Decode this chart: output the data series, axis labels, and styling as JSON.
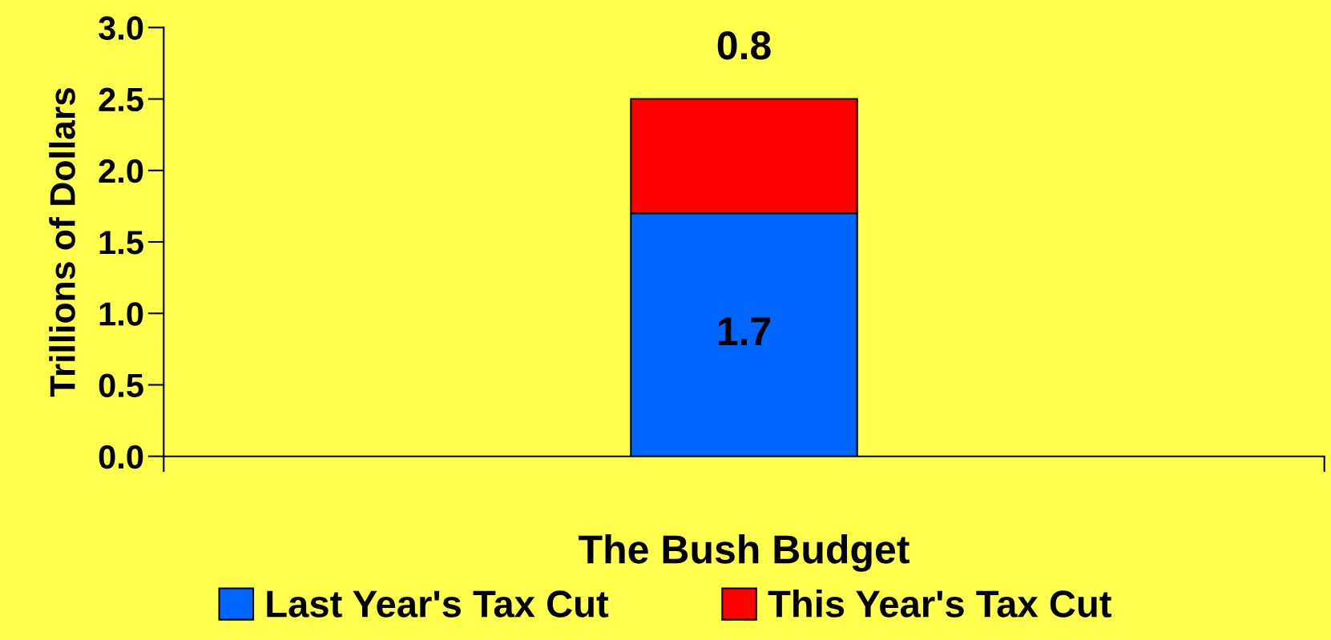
{
  "chart_data": {
    "type": "bar",
    "stacked": true,
    "ylabel": "Trillions of Dollars",
    "categories": [
      "The Bush Budget"
    ],
    "series": [
      {
        "name": "Last Year's Tax Cut",
        "color": "#0066ff",
        "values": [
          1.7
        ]
      },
      {
        "name": "This Year's Tax Cut",
        "color": "#ff0000",
        "values": [
          0.8
        ]
      }
    ],
    "ylim": [
      0,
      3.0
    ],
    "yticks": [
      {
        "value": 0,
        "label": "0.0"
      },
      {
        "value": 0.5,
        "label": "0.5"
      },
      {
        "value": 1.0,
        "label": "1.0"
      },
      {
        "value": 1.5,
        "label": "1.5"
      },
      {
        "value": 2.0,
        "label": "2.0"
      },
      {
        "value": 2.5,
        "label": "2.5"
      },
      {
        "value": 3.0,
        "label": "3.0"
      }
    ],
    "data_labels": true,
    "grid": false,
    "legend": "bottom"
  }
}
